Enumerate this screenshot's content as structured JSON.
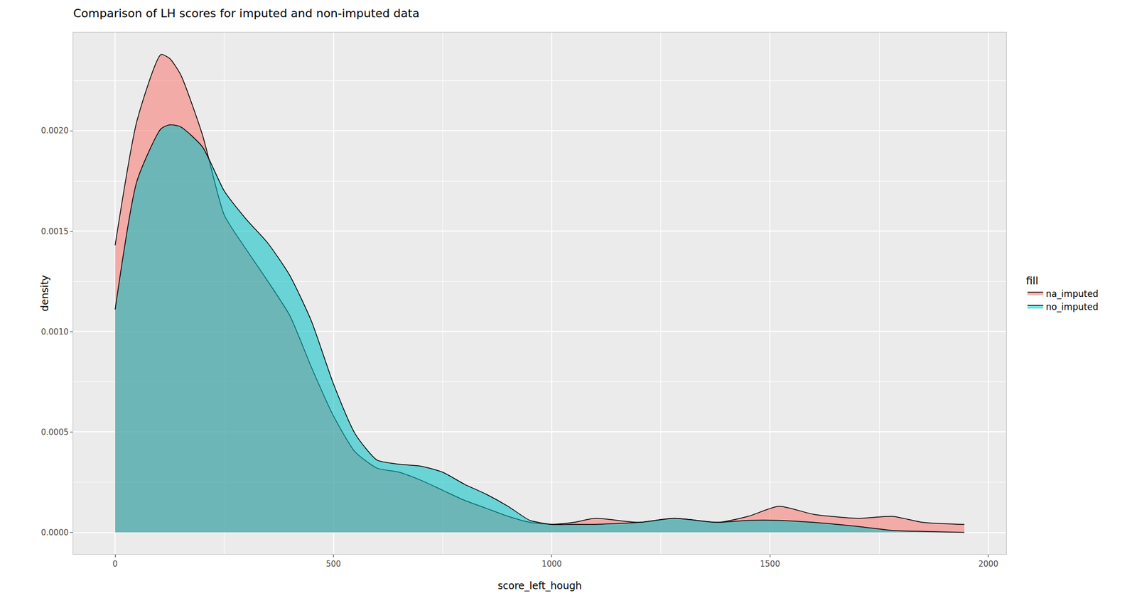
{
  "chart_data": {
    "type": "density",
    "title": "Comparison of LH scores for imputed and non-imputed data",
    "x_label": "score_left_hough",
    "y_label": "density",
    "legend_title": "fill",
    "legend": "right",
    "grid": true,
    "x": [
      0,
      50,
      105,
      125,
      150,
      200,
      250,
      300,
      350,
      400,
      450,
      500,
      550,
      600,
      650,
      700,
      750,
      800,
      850,
      900,
      950,
      1000,
      1050,
      1100,
      1200,
      1280,
      1380,
      1450,
      1520,
      1600,
      1700,
      1780,
      1850,
      1945
    ],
    "series": [
      {
        "name": "na_imputed",
        "color": "#F8766D",
        "values": [
          0.00143,
          0.00205,
          0.00238,
          0.00236,
          0.00228,
          0.00198,
          0.00158,
          0.00141,
          0.00125,
          0.00108,
          0.00082,
          0.00058,
          0.0004,
          0.00032,
          0.0003,
          0.00026,
          0.00021,
          0.00016,
          0.00012,
          8e-05,
          5e-05,
          4e-05,
          5e-05,
          7e-05,
          5e-05,
          7e-05,
          5e-05,
          8e-05,
          0.00013,
          9e-05,
          7e-05,
          8e-05,
          5e-05,
          4e-05
        ]
      },
      {
        "name": "no_imputed",
        "color": "#00BFC4",
        "values": [
          0.00111,
          0.00175,
          0.00201,
          0.00203,
          0.00202,
          0.00192,
          0.0017,
          0.00156,
          0.00144,
          0.00128,
          0.00105,
          0.00074,
          0.00049,
          0.00036,
          0.00034,
          0.00033,
          0.0003,
          0.00024,
          0.00019,
          0.00013,
          6e-05,
          4e-05,
          4e-05,
          4e-05,
          5e-05,
          7e-05,
          5e-05,
          6e-05,
          6e-05,
          5e-05,
          3e-05,
          1e-05,
          5e-06,
          0
        ]
      }
    ],
    "xlim": [
      -96,
      2041
    ],
    "ylim": [
      -0.000108,
      0.00249
    ],
    "xticks": [
      0,
      500,
      1000,
      1500,
      2000
    ],
    "yticks": [
      {
        "value": 0,
        "label": "0.0000"
      },
      {
        "value": 0.0005,
        "label": "0.0005"
      },
      {
        "value": 0.001,
        "label": "0.0010"
      },
      {
        "value": 0.0015,
        "label": "0.0015"
      },
      {
        "value": 0.002,
        "label": "0.0020"
      }
    ]
  }
}
